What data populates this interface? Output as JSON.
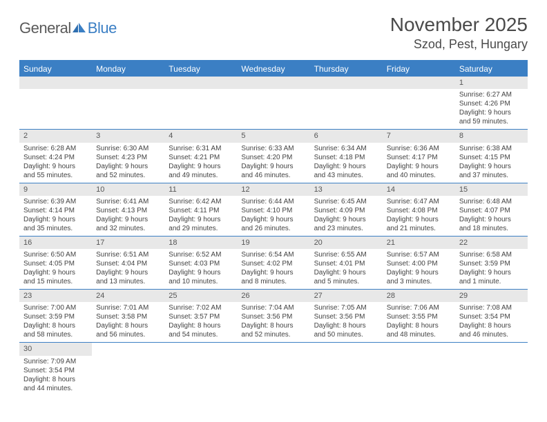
{
  "logo": {
    "part1": "General",
    "part2": "Blue"
  },
  "title": "November 2025",
  "location": "Szod, Pest, Hungary",
  "colors": {
    "accent": "#3b7fc4",
    "daynum_bg": "#e8e8e8",
    "text": "#424242",
    "title_text": "#4a4a4a",
    "logo_gray": "#5a5a5a"
  },
  "weekdays": [
    "Sunday",
    "Monday",
    "Tuesday",
    "Wednesday",
    "Thursday",
    "Friday",
    "Saturday"
  ],
  "weeks": [
    [
      {
        "empty": true
      },
      {
        "empty": true
      },
      {
        "empty": true
      },
      {
        "empty": true
      },
      {
        "empty": true
      },
      {
        "empty": true
      },
      {
        "num": "1",
        "sunrise": "Sunrise: 6:27 AM",
        "sunset": "Sunset: 4:26 PM",
        "daylight": "Daylight: 9 hours and 59 minutes."
      }
    ],
    [
      {
        "num": "2",
        "sunrise": "Sunrise: 6:28 AM",
        "sunset": "Sunset: 4:24 PM",
        "daylight": "Daylight: 9 hours and 55 minutes."
      },
      {
        "num": "3",
        "sunrise": "Sunrise: 6:30 AM",
        "sunset": "Sunset: 4:23 PM",
        "daylight": "Daylight: 9 hours and 52 minutes."
      },
      {
        "num": "4",
        "sunrise": "Sunrise: 6:31 AM",
        "sunset": "Sunset: 4:21 PM",
        "daylight": "Daylight: 9 hours and 49 minutes."
      },
      {
        "num": "5",
        "sunrise": "Sunrise: 6:33 AM",
        "sunset": "Sunset: 4:20 PM",
        "daylight": "Daylight: 9 hours and 46 minutes."
      },
      {
        "num": "6",
        "sunrise": "Sunrise: 6:34 AM",
        "sunset": "Sunset: 4:18 PM",
        "daylight": "Daylight: 9 hours and 43 minutes."
      },
      {
        "num": "7",
        "sunrise": "Sunrise: 6:36 AM",
        "sunset": "Sunset: 4:17 PM",
        "daylight": "Daylight: 9 hours and 40 minutes."
      },
      {
        "num": "8",
        "sunrise": "Sunrise: 6:38 AM",
        "sunset": "Sunset: 4:15 PM",
        "daylight": "Daylight: 9 hours and 37 minutes."
      }
    ],
    [
      {
        "num": "9",
        "sunrise": "Sunrise: 6:39 AM",
        "sunset": "Sunset: 4:14 PM",
        "daylight": "Daylight: 9 hours and 35 minutes."
      },
      {
        "num": "10",
        "sunrise": "Sunrise: 6:41 AM",
        "sunset": "Sunset: 4:13 PM",
        "daylight": "Daylight: 9 hours and 32 minutes."
      },
      {
        "num": "11",
        "sunrise": "Sunrise: 6:42 AM",
        "sunset": "Sunset: 4:11 PM",
        "daylight": "Daylight: 9 hours and 29 minutes."
      },
      {
        "num": "12",
        "sunrise": "Sunrise: 6:44 AM",
        "sunset": "Sunset: 4:10 PM",
        "daylight": "Daylight: 9 hours and 26 minutes."
      },
      {
        "num": "13",
        "sunrise": "Sunrise: 6:45 AM",
        "sunset": "Sunset: 4:09 PM",
        "daylight": "Daylight: 9 hours and 23 minutes."
      },
      {
        "num": "14",
        "sunrise": "Sunrise: 6:47 AM",
        "sunset": "Sunset: 4:08 PM",
        "daylight": "Daylight: 9 hours and 21 minutes."
      },
      {
        "num": "15",
        "sunrise": "Sunrise: 6:48 AM",
        "sunset": "Sunset: 4:07 PM",
        "daylight": "Daylight: 9 hours and 18 minutes."
      }
    ],
    [
      {
        "num": "16",
        "sunrise": "Sunrise: 6:50 AM",
        "sunset": "Sunset: 4:05 PM",
        "daylight": "Daylight: 9 hours and 15 minutes."
      },
      {
        "num": "17",
        "sunrise": "Sunrise: 6:51 AM",
        "sunset": "Sunset: 4:04 PM",
        "daylight": "Daylight: 9 hours and 13 minutes."
      },
      {
        "num": "18",
        "sunrise": "Sunrise: 6:52 AM",
        "sunset": "Sunset: 4:03 PM",
        "daylight": "Daylight: 9 hours and 10 minutes."
      },
      {
        "num": "19",
        "sunrise": "Sunrise: 6:54 AM",
        "sunset": "Sunset: 4:02 PM",
        "daylight": "Daylight: 9 hours and 8 minutes."
      },
      {
        "num": "20",
        "sunrise": "Sunrise: 6:55 AM",
        "sunset": "Sunset: 4:01 PM",
        "daylight": "Daylight: 9 hours and 5 minutes."
      },
      {
        "num": "21",
        "sunrise": "Sunrise: 6:57 AM",
        "sunset": "Sunset: 4:00 PM",
        "daylight": "Daylight: 9 hours and 3 minutes."
      },
      {
        "num": "22",
        "sunrise": "Sunrise: 6:58 AM",
        "sunset": "Sunset: 3:59 PM",
        "daylight": "Daylight: 9 hours and 1 minute."
      }
    ],
    [
      {
        "num": "23",
        "sunrise": "Sunrise: 7:00 AM",
        "sunset": "Sunset: 3:59 PM",
        "daylight": "Daylight: 8 hours and 58 minutes."
      },
      {
        "num": "24",
        "sunrise": "Sunrise: 7:01 AM",
        "sunset": "Sunset: 3:58 PM",
        "daylight": "Daylight: 8 hours and 56 minutes."
      },
      {
        "num": "25",
        "sunrise": "Sunrise: 7:02 AM",
        "sunset": "Sunset: 3:57 PM",
        "daylight": "Daylight: 8 hours and 54 minutes."
      },
      {
        "num": "26",
        "sunrise": "Sunrise: 7:04 AM",
        "sunset": "Sunset: 3:56 PM",
        "daylight": "Daylight: 8 hours and 52 minutes."
      },
      {
        "num": "27",
        "sunrise": "Sunrise: 7:05 AM",
        "sunset": "Sunset: 3:56 PM",
        "daylight": "Daylight: 8 hours and 50 minutes."
      },
      {
        "num": "28",
        "sunrise": "Sunrise: 7:06 AM",
        "sunset": "Sunset: 3:55 PM",
        "daylight": "Daylight: 8 hours and 48 minutes."
      },
      {
        "num": "29",
        "sunrise": "Sunrise: 7:08 AM",
        "sunset": "Sunset: 3:54 PM",
        "daylight": "Daylight: 8 hours and 46 minutes."
      }
    ],
    [
      {
        "num": "30",
        "sunrise": "Sunrise: 7:09 AM",
        "sunset": "Sunset: 3:54 PM",
        "daylight": "Daylight: 8 hours and 44 minutes."
      },
      {
        "empty": true
      },
      {
        "empty": true
      },
      {
        "empty": true
      },
      {
        "empty": true
      },
      {
        "empty": true
      },
      {
        "empty": true
      }
    ]
  ]
}
